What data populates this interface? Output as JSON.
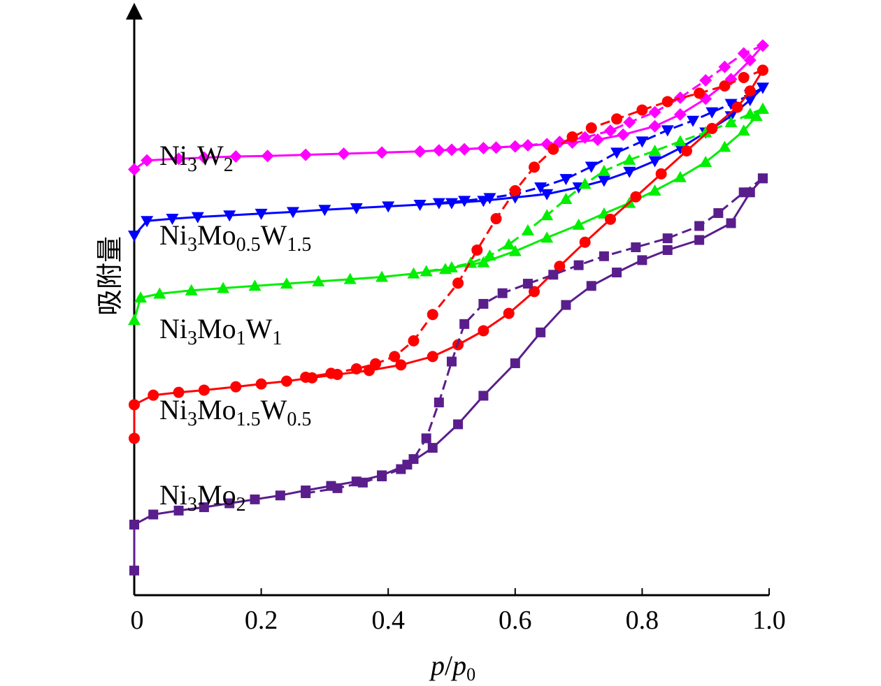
{
  "chart_data": {
    "type": "line",
    "xlabel_main": "p",
    "xlabel_sub": "0",
    "ylabel": "吸附量",
    "xlim": [
      0,
      1.0
    ],
    "x_ticks": [
      "0",
      "0.2",
      "0.4",
      "0.6",
      "0.8",
      "1.0"
    ],
    "x_tick_values": [
      0,
      0.2,
      0.4,
      0.6,
      0.8,
      1.0
    ],
    "y_ticks_shown": false,
    "grid": false,
    "series": [
      {
        "name": "Ni3W2",
        "label_base": "Ni",
        "label_sub1": "3",
        "label_mid": "W",
        "label_sub2": "2",
        "color": "#ff00ff",
        "marker": "diamond",
        "adsorption": [
          [
            0,
            0.76
          ],
          [
            0.02,
            0.776
          ],
          [
            0.07,
            0.779
          ],
          [
            0.11,
            0.781
          ],
          [
            0.16,
            0.783
          ],
          [
            0.21,
            0.784
          ],
          [
            0.27,
            0.786
          ],
          [
            0.33,
            0.788
          ],
          [
            0.39,
            0.79
          ],
          [
            0.45,
            0.792
          ],
          [
            0.5,
            0.795
          ],
          [
            0.55,
            0.798
          ],
          [
            0.6,
            0.801
          ],
          [
            0.65,
            0.805
          ],
          [
            0.69,
            0.808
          ],
          [
            0.73,
            0.813
          ],
          [
            0.77,
            0.822
          ],
          [
            0.82,
            0.837
          ],
          [
            0.86,
            0.858
          ],
          [
            0.9,
            0.886
          ],
          [
            0.94,
            0.921
          ],
          [
            0.97,
            0.955
          ],
          [
            0.99,
            0.981
          ]
        ],
        "desorption": [
          [
            0.99,
            0.981
          ],
          [
            0.96,
            0.967
          ],
          [
            0.93,
            0.943
          ],
          [
            0.9,
            0.919
          ],
          [
            0.86,
            0.888
          ],
          [
            0.82,
            0.862
          ],
          [
            0.78,
            0.844
          ],
          [
            0.75,
            0.829
          ],
          [
            0.71,
            0.817
          ],
          [
            0.67,
            0.809
          ],
          [
            0.62,
            0.803
          ],
          [
            0.57,
            0.799
          ],
          [
            0.52,
            0.796
          ],
          [
            0.48,
            0.794
          ]
        ]
      },
      {
        "name": "Ni3Mo0.5W1.5",
        "label_base": "Ni",
        "label_sub1": "3",
        "label_mid": "Mo",
        "label_sub2": "0.5",
        "label_end": "W",
        "label_sub3": "1.5",
        "color": "#0000ff",
        "marker": "triangle-down",
        "adsorption": [
          [
            0,
            0.642
          ],
          [
            0.02,
            0.668
          ],
          [
            0.06,
            0.672
          ],
          [
            0.1,
            0.675
          ],
          [
            0.15,
            0.678
          ],
          [
            0.2,
            0.681
          ],
          [
            0.25,
            0.684
          ],
          [
            0.3,
            0.688
          ],
          [
            0.35,
            0.691
          ],
          [
            0.4,
            0.694
          ],
          [
            0.45,
            0.697
          ],
          [
            0.5,
            0.7
          ],
          [
            0.55,
            0.704
          ],
          [
            0.6,
            0.71
          ],
          [
            0.65,
            0.716
          ],
          [
            0.7,
            0.728
          ],
          [
            0.74,
            0.74
          ],
          [
            0.78,
            0.756
          ],
          [
            0.82,
            0.775
          ],
          [
            0.86,
            0.798
          ],
          [
            0.9,
            0.826
          ],
          [
            0.94,
            0.855
          ],
          [
            0.97,
            0.884
          ],
          [
            0.99,
            0.906
          ]
        ],
        "desorption": [
          [
            0.99,
            0.906
          ],
          [
            0.97,
            0.893
          ],
          [
            0.94,
            0.877
          ],
          [
            0.91,
            0.862
          ],
          [
            0.88,
            0.847
          ],
          [
            0.84,
            0.83
          ],
          [
            0.8,
            0.81
          ],
          [
            0.76,
            0.79
          ],
          [
            0.72,
            0.765
          ],
          [
            0.68,
            0.743
          ],
          [
            0.64,
            0.728
          ],
          [
            0.6,
            0.716
          ],
          [
            0.56,
            0.709
          ],
          [
            0.52,
            0.704
          ],
          [
            0.48,
            0.7
          ]
        ]
      },
      {
        "name": "Ni3Mo1W1",
        "label_base": "Ni",
        "label_sub1": "3",
        "label_mid": "Mo",
        "label_sub2": "1",
        "label_end": "W",
        "label_sub3": "1",
        "color": "#00ee00",
        "marker": "triangle-up",
        "adsorption": [
          [
            0,
            0.491
          ],
          [
            0.01,
            0.531
          ],
          [
            0.04,
            0.538
          ],
          [
            0.09,
            0.544
          ],
          [
            0.14,
            0.548
          ],
          [
            0.19,
            0.552
          ],
          [
            0.24,
            0.556
          ],
          [
            0.29,
            0.56
          ],
          [
            0.34,
            0.564
          ],
          [
            0.39,
            0.568
          ],
          [
            0.44,
            0.574
          ],
          [
            0.49,
            0.582
          ],
          [
            0.55,
            0.594
          ],
          [
            0.6,
            0.614
          ],
          [
            0.65,
            0.638
          ],
          [
            0.7,
            0.661
          ],
          [
            0.74,
            0.681
          ],
          [
            0.78,
            0.7
          ],
          [
            0.82,
            0.722
          ],
          [
            0.86,
            0.746
          ],
          [
            0.9,
            0.773
          ],
          [
            0.93,
            0.8
          ],
          [
            0.96,
            0.829
          ],
          [
            0.98,
            0.855
          ],
          [
            0.99,
            0.868
          ]
        ],
        "desorption": [
          [
            0.99,
            0.868
          ],
          [
            0.97,
            0.859
          ],
          [
            0.94,
            0.844
          ],
          [
            0.9,
            0.826
          ],
          [
            0.86,
            0.81
          ],
          [
            0.82,
            0.793
          ],
          [
            0.78,
            0.777
          ],
          [
            0.74,
            0.757
          ],
          [
            0.71,
            0.734
          ],
          [
            0.68,
            0.707
          ],
          [
            0.65,
            0.678
          ],
          [
            0.62,
            0.651
          ],
          [
            0.59,
            0.626
          ],
          [
            0.56,
            0.606
          ],
          [
            0.53,
            0.593
          ],
          [
            0.5,
            0.585
          ],
          [
            0.46,
            0.578
          ]
        ]
      },
      {
        "name": "Ni3Mo1.5W0.5",
        "label_base": "Ni",
        "label_sub1": "3",
        "label_mid": "Mo",
        "label_sub2": "1.5",
        "label_end": "W",
        "label_sub3": "0.5",
        "color": "#ff0000",
        "marker": "circle",
        "adsorption": [
          [
            0,
            0.28
          ],
          [
            0,
            0.34
          ],
          [
            0.03,
            0.357
          ],
          [
            0.07,
            0.362
          ],
          [
            0.11,
            0.366
          ],
          [
            0.16,
            0.372
          ],
          [
            0.2,
            0.377
          ],
          [
            0.24,
            0.382
          ],
          [
            0.28,
            0.388
          ],
          [
            0.32,
            0.394
          ],
          [
            0.37,
            0.401
          ],
          [
            0.42,
            0.411
          ],
          [
            0.47,
            0.426
          ],
          [
            0.51,
            0.447
          ],
          [
            0.55,
            0.472
          ],
          [
            0.59,
            0.503
          ],
          [
            0.63,
            0.542
          ],
          [
            0.67,
            0.587
          ],
          [
            0.71,
            0.63
          ],
          [
            0.75,
            0.671
          ],
          [
            0.79,
            0.711
          ],
          [
            0.83,
            0.752
          ],
          [
            0.87,
            0.793
          ],
          [
            0.91,
            0.833
          ],
          [
            0.95,
            0.871
          ],
          [
            0.97,
            0.9
          ],
          [
            0.99,
            0.937
          ]
        ],
        "desorption": [
          [
            0.99,
            0.937
          ],
          [
            0.96,
            0.924
          ],
          [
            0.93,
            0.909
          ],
          [
            0.89,
            0.896
          ],
          [
            0.84,
            0.881
          ],
          [
            0.8,
            0.866
          ],
          [
            0.76,
            0.85
          ],
          [
            0.72,
            0.834
          ],
          [
            0.69,
            0.818
          ],
          [
            0.66,
            0.796
          ],
          [
            0.63,
            0.764
          ],
          [
            0.6,
            0.722
          ],
          [
            0.57,
            0.672
          ],
          [
            0.54,
            0.616
          ],
          [
            0.51,
            0.557
          ],
          [
            0.47,
            0.501
          ],
          [
            0.44,
            0.454
          ],
          [
            0.41,
            0.426
          ],
          [
            0.38,
            0.413
          ],
          [
            0.35,
            0.404
          ],
          [
            0.31,
            0.396
          ],
          [
            0.27,
            0.389
          ]
        ]
      },
      {
        "name": "Ni3Mo2",
        "label_base": "Ni",
        "label_sub1": "3",
        "label_mid": "Mo",
        "label_sub2": "2",
        "color": "#5a1e8c",
        "marker": "square",
        "adsorption": [
          [
            0,
            0.044
          ],
          [
            0,
            0.126
          ],
          [
            0.03,
            0.144
          ],
          [
            0.07,
            0.151
          ],
          [
            0.11,
            0.157
          ],
          [
            0.15,
            0.164
          ],
          [
            0.19,
            0.171
          ],
          [
            0.23,
            0.178
          ],
          [
            0.27,
            0.187
          ],
          [
            0.31,
            0.195
          ],
          [
            0.35,
            0.203
          ],
          [
            0.39,
            0.214
          ],
          [
            0.43,
            0.233
          ],
          [
            0.47,
            0.263
          ],
          [
            0.51,
            0.305
          ],
          [
            0.55,
            0.356
          ],
          [
            0.6,
            0.414
          ],
          [
            0.64,
            0.469
          ],
          [
            0.68,
            0.518
          ],
          [
            0.72,
            0.552
          ],
          [
            0.76,
            0.576
          ],
          [
            0.8,
            0.598
          ],
          [
            0.84,
            0.616
          ],
          [
            0.89,
            0.634
          ],
          [
            0.94,
            0.664
          ],
          [
            0.97,
            0.719
          ],
          [
            0.99,
            0.744
          ]
        ],
        "desorption": [
          [
            0.99,
            0.744
          ],
          [
            0.96,
            0.719
          ],
          [
            0.92,
            0.682
          ],
          [
            0.89,
            0.659
          ],
          [
            0.84,
            0.637
          ],
          [
            0.79,
            0.621
          ],
          [
            0.74,
            0.605
          ],
          [
            0.7,
            0.589
          ],
          [
            0.66,
            0.572
          ],
          [
            0.62,
            0.556
          ],
          [
            0.58,
            0.539
          ],
          [
            0.55,
            0.52
          ],
          [
            0.52,
            0.484
          ],
          [
            0.5,
            0.417
          ],
          [
            0.48,
            0.344
          ],
          [
            0.46,
            0.28
          ],
          [
            0.44,
            0.243
          ],
          [
            0.42,
            0.225
          ],
          [
            0.39,
            0.212
          ],
          [
            0.36,
            0.201
          ],
          [
            0.32,
            0.191
          ],
          [
            0.27,
            0.182
          ]
        ]
      }
    ]
  }
}
